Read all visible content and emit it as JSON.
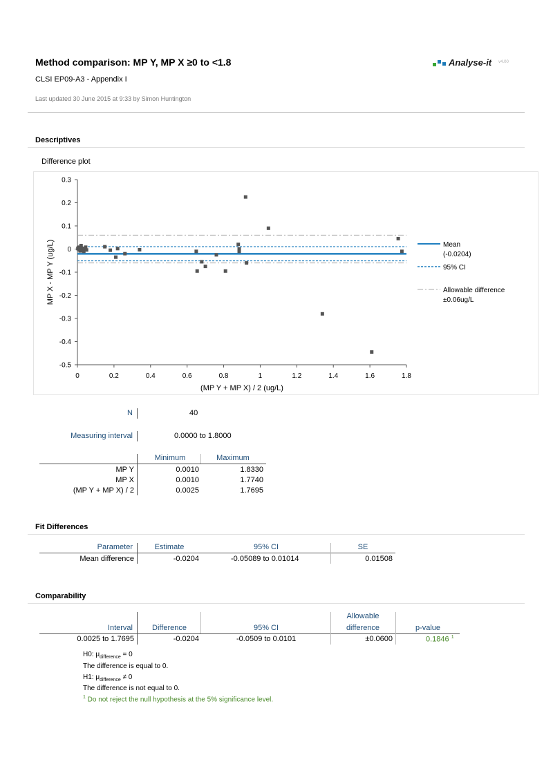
{
  "header": {
    "title": "Method comparison: MP Y, MP X ≥0 to <1.8",
    "subtitle": "CLSI EP09-A3 - Appendix I",
    "updated": "Last updated 30 June 2015 at 9:33 by Simon Huntington",
    "logo_text": "Analyse-it",
    "version": "v4.00",
    "logo_colors": [
      "#3aa635",
      "#1c7ab8",
      "#1c7ab8"
    ]
  },
  "descriptives": {
    "heading": "Descriptives",
    "plot_title": "Difference plot"
  },
  "chart_data": {
    "type": "scatter",
    "xlabel": "(MP Y + MP X) / 2 (ug/L)",
    "ylabel": "MP X - MP Y (ug/L)",
    "xlim": [
      0,
      1.8
    ],
    "ylim": [
      -0.5,
      0.3
    ],
    "xticks": [
      0,
      0.2,
      0.4,
      0.6,
      0.8,
      1,
      1.2,
      1.4,
      1.6,
      1.8
    ],
    "xtick_labels": [
      "0",
      "0.2",
      "0.4",
      "0.6",
      "0.8",
      "1",
      "1.2",
      "1.4",
      "1.6",
      "1.8"
    ],
    "yticks": [
      0.3,
      0.2,
      0.1,
      0,
      -0.1,
      -0.2,
      -0.3,
      -0.4,
      -0.5
    ],
    "ytick_labels": [
      "0.3",
      "0.2",
      "0.1",
      "0",
      "-0.1",
      "-0.2",
      "-0.3",
      "-0.4",
      "-0.5"
    ],
    "points": [
      [
        0.0025,
        0.002
      ],
      [
        0.005,
        0.005
      ],
      [
        0.008,
        -0.003
      ],
      [
        0.01,
        0.008
      ],
      [
        0.012,
        0.0
      ],
      [
        0.015,
        -0.008
      ],
      [
        0.018,
        0.004
      ],
      [
        0.02,
        0.015
      ],
      [
        0.025,
        -0.006
      ],
      [
        0.03,
        0.003
      ],
      [
        0.035,
        -0.01
      ],
      [
        0.04,
        0.002
      ],
      [
        0.045,
        0.008
      ],
      [
        0.05,
        -0.004
      ],
      [
        0.15,
        0.01
      ],
      [
        0.18,
        -0.005
      ],
      [
        0.21,
        -0.035
      ],
      [
        0.22,
        0.002
      ],
      [
        0.26,
        -0.02
      ],
      [
        0.34,
        -0.003
      ],
      [
        0.65,
        -0.01
      ],
      [
        0.655,
        -0.095
      ],
      [
        0.68,
        -0.055
      ],
      [
        0.7,
        -0.075
      ],
      [
        0.76,
        -0.025
      ],
      [
        0.81,
        -0.095
      ],
      [
        0.88,
        0.02
      ],
      [
        0.885,
        0.0
      ],
      [
        0.885,
        -0.01
      ],
      [
        0.92,
        0.225
      ],
      [
        0.925,
        -0.06
      ],
      [
        1.045,
        0.09
      ],
      [
        1.34,
        -0.28
      ],
      [
        1.61,
        -0.445
      ],
      [
        1.755,
        0.045
      ],
      [
        1.775,
        -0.01
      ]
    ],
    "mean": -0.0204,
    "ci": [
      -0.05089,
      0.01014
    ],
    "allowable": 0.06,
    "legend": [
      {
        "name": "Mean",
        "detail": "(-0.0204)",
        "style": "solid",
        "color": "#1f7fc0"
      },
      {
        "name": "95% CI",
        "detail": "",
        "style": "dashed",
        "color": "#1f7fc0"
      },
      {
        "name": "Allowable difference",
        "detail": "±0.06ug/L",
        "style": "dashdot",
        "color": "#a8a8a8"
      }
    ]
  },
  "stats": {
    "n_label": "N",
    "n_value": "40",
    "interval_label": "Measuring interval",
    "interval_value": "0.0000  to 1.8000",
    "range_headers": [
      "Minimum",
      "Maximum"
    ],
    "range_rows": [
      {
        "label": "MP Y",
        "min": "0.0010",
        "max": "1.8330"
      },
      {
        "label": "MP X",
        "min": "0.0010",
        "max": "1.7740"
      },
      {
        "label": "(MP Y + MP X) / 2",
        "min": "0.0025",
        "max": "1.7695"
      }
    ]
  },
  "fit": {
    "heading": "Fit Differences",
    "headers": [
      "Parameter",
      "Estimate",
      "95% CI",
      "SE"
    ],
    "row": {
      "parameter": "Mean difference",
      "estimate": "-0.0204",
      "ci": "-0.05089  to 0.01014",
      "se": "0.01508"
    }
  },
  "comparability": {
    "heading": "Comparability",
    "headers": [
      "Interval",
      "Difference",
      "95% CI",
      "Allowable",
      "difference",
      "p-value"
    ],
    "row": {
      "interval": "0.0025 to 1.7695",
      "difference": "-0.0204",
      "ci": "-0.0509  to 0.0101",
      "allowable": "±0.0600",
      "pvalue": "0.1846",
      "footnote_mark": "1"
    },
    "h0_prefix": "H0: μ",
    "h0_sub": "difference",
    "h0_suffix": " = 0",
    "h0_text": "The difference is equal to 0.",
    "h1_prefix": "H1: μ",
    "h1_sub": "difference",
    "h1_suffix": " ≠ 0",
    "h1_text": "The difference is not equal to 0.",
    "footnote_num": "1",
    "footnote": " Do not reject the null hypothesis at the 5% significance level."
  }
}
